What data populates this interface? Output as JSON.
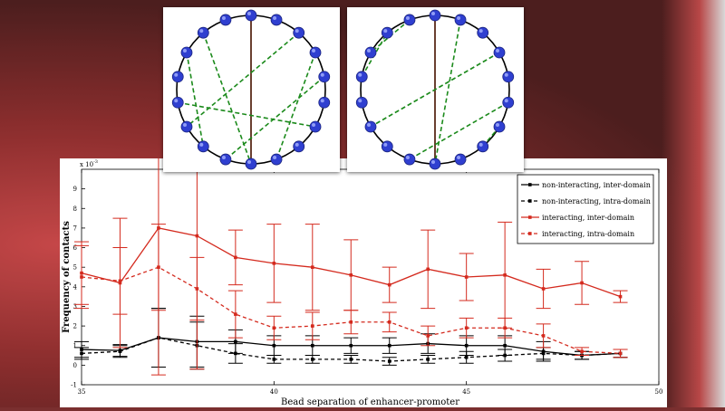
{
  "chart_data": {
    "type": "line",
    "xlabel": "Bead separation of enhancer-promoter",
    "ylabel": "Frequency of contacts",
    "exponent_label": "x 10",
    "exponent_power": "-3",
    "xlim": [
      35,
      50
    ],
    "ylim": [
      -1,
      10
    ],
    "x_ticks": [
      "35",
      "40",
      "45",
      "50"
    ],
    "y_ticks": [
      "-1",
      "0",
      "1",
      "2",
      "3",
      "4",
      "5",
      "6",
      "7",
      "8",
      "9"
    ],
    "legend_position": "top-right",
    "series": [
      {
        "name": "non-interacting, inter-domain",
        "color": "#000000",
        "style": "solid",
        "x": [
          35,
          36,
          37,
          38,
          39,
          40,
          41,
          42,
          43,
          44,
          45,
          46,
          47,
          48,
          49
        ],
        "values": [
          0.8,
          0.75,
          1.4,
          1.2,
          1.2,
          1.0,
          1.0,
          1.0,
          1.0,
          1.1,
          1.0,
          1.0,
          0.7,
          0.5,
          0.6
        ],
        "err": [
          0.4,
          0.3,
          1.5,
          1.3,
          0.6,
          0.5,
          0.5,
          0.4,
          0.4,
          0.5,
          0.5,
          0.5,
          0.5,
          0.2,
          0.2
        ]
      },
      {
        "name": "non-interacting, intra-domain",
        "color": "#000000",
        "style": "dashed",
        "x": [
          35,
          36,
          37,
          38,
          39,
          40,
          41,
          42,
          43,
          44,
          45,
          46,
          47,
          48,
          49
        ],
        "values": [
          0.6,
          0.7,
          1.4,
          1.0,
          0.6,
          0.3,
          0.3,
          0.3,
          0.2,
          0.3,
          0.4,
          0.5,
          0.6,
          0.5,
          0.6
        ],
        "err": [
          0.3,
          0.3,
          1.5,
          1.2,
          0.5,
          0.2,
          0.2,
          0.2,
          0.2,
          0.2,
          0.3,
          0.3,
          0.3,
          0.2,
          0.2
        ]
      },
      {
        "name": "interacting, inter-domain",
        "color": "#d42a1e",
        "style": "solid",
        "x": [
          35,
          36,
          37,
          38,
          39,
          40,
          41,
          42,
          43,
          44,
          45,
          46,
          47,
          48,
          49
        ],
        "values": [
          4.7,
          4.2,
          7.0,
          6.6,
          5.5,
          5.2,
          5.0,
          4.6,
          4.1,
          4.9,
          4.5,
          4.6,
          3.9,
          4.2,
          3.5
        ],
        "err": [
          1.6,
          3.3,
          7.5,
          6.8,
          1.4,
          2.0,
          2.2,
          1.8,
          0.9,
          2.0,
          1.2,
          2.7,
          1.0,
          1.1,
          0.3
        ]
      },
      {
        "name": "interacting, intra-domain",
        "color": "#d42a1e",
        "style": "dashed",
        "x": [
          35,
          36,
          37,
          38,
          39,
          40,
          41,
          42,
          43,
          44,
          45,
          46,
          47,
          48,
          49
        ],
        "values": [
          4.5,
          4.3,
          5.0,
          3.9,
          2.6,
          1.9,
          2.0,
          2.2,
          2.2,
          1.5,
          1.9,
          1.9,
          1.5,
          0.7,
          0.6
        ],
        "err": [
          1.6,
          1.7,
          2.2,
          1.6,
          1.2,
          0.6,
          0.7,
          0.6,
          0.5,
          0.5,
          0.5,
          0.5,
          0.6,
          0.2,
          0.2
        ]
      }
    ]
  },
  "insets": [
    {
      "name": "scattered-contacts",
      "bead_count": 18,
      "bead_color": "#2f3fd0",
      "link_color": "#1b8a1b",
      "axis_color": "#5a2a1a"
    },
    {
      "name": "local-contacts",
      "bead_count": 18,
      "bead_color": "#2f3fd0",
      "link_color": "#1b8a1b",
      "axis_color": "#5a2a1a"
    }
  ]
}
